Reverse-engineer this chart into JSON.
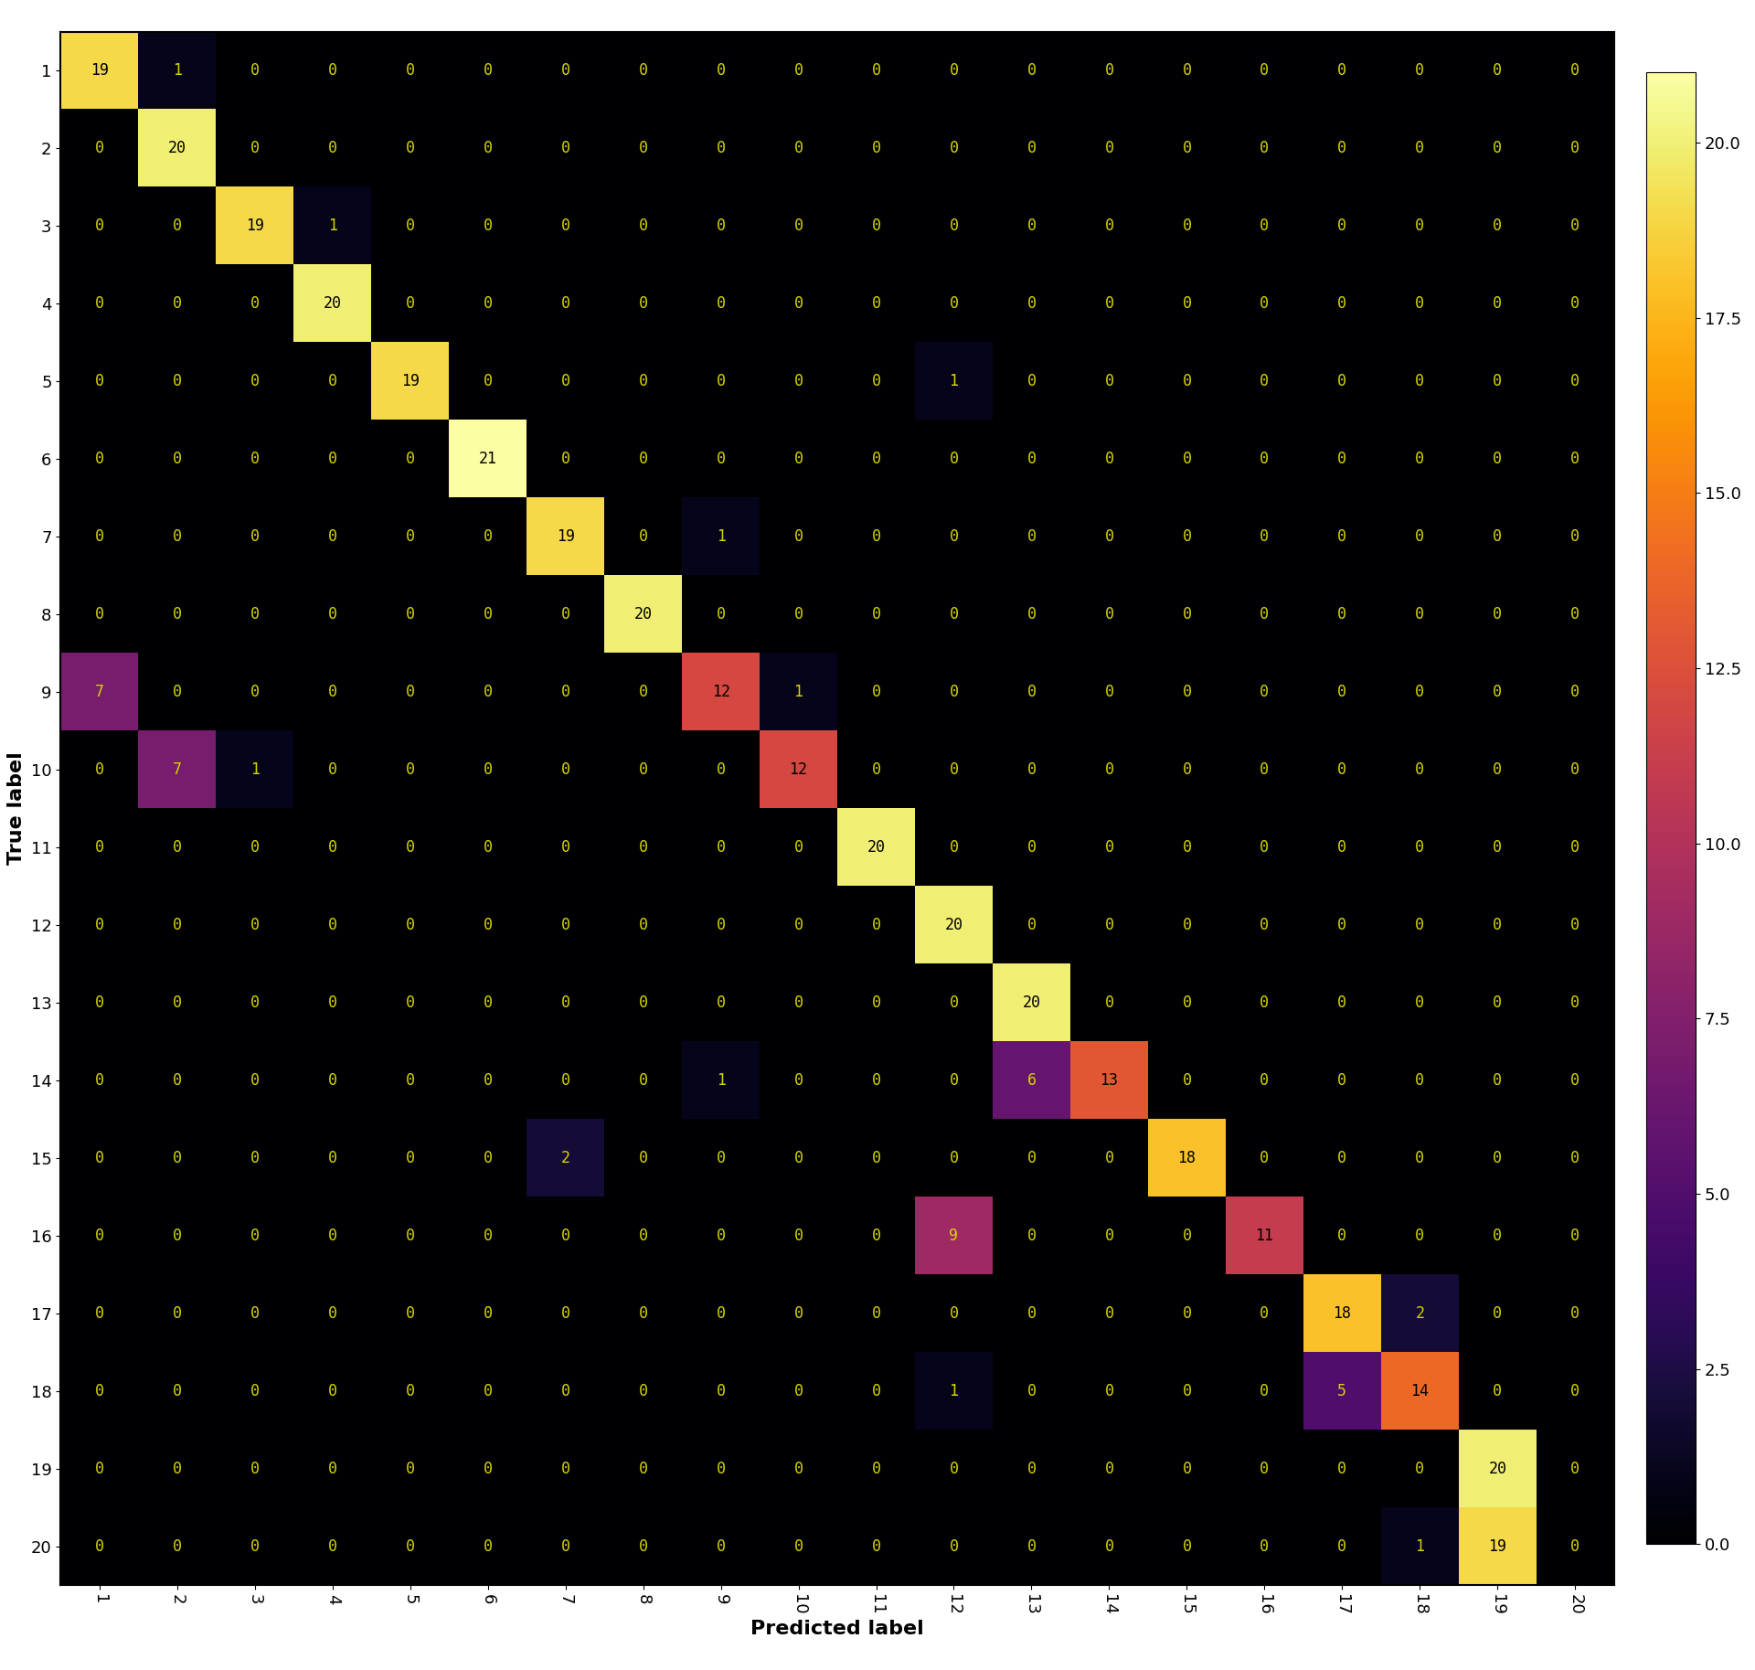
{
  "matrix": [
    [
      19,
      1,
      0,
      0,
      0,
      0,
      0,
      0,
      0,
      0,
      0,
      0,
      0,
      0,
      0,
      0,
      0,
      0,
      0,
      0
    ],
    [
      0,
      20,
      0,
      0,
      0,
      0,
      0,
      0,
      0,
      0,
      0,
      0,
      0,
      0,
      0,
      0,
      0,
      0,
      0,
      0
    ],
    [
      0,
      0,
      19,
      1,
      0,
      0,
      0,
      0,
      0,
      0,
      0,
      0,
      0,
      0,
      0,
      0,
      0,
      0,
      0,
      0
    ],
    [
      0,
      0,
      0,
      20,
      0,
      0,
      0,
      0,
      0,
      0,
      0,
      0,
      0,
      0,
      0,
      0,
      0,
      0,
      0,
      0
    ],
    [
      0,
      0,
      0,
      0,
      19,
      0,
      0,
      0,
      0,
      0,
      0,
      1,
      0,
      0,
      0,
      0,
      0,
      0,
      0,
      0
    ],
    [
      0,
      0,
      0,
      0,
      0,
      21,
      0,
      0,
      0,
      0,
      0,
      0,
      0,
      0,
      0,
      0,
      0,
      0,
      0,
      0
    ],
    [
      0,
      0,
      0,
      0,
      0,
      0,
      19,
      0,
      1,
      0,
      0,
      0,
      0,
      0,
      0,
      0,
      0,
      0,
      0,
      0
    ],
    [
      0,
      0,
      0,
      0,
      0,
      0,
      0,
      20,
      0,
      0,
      0,
      0,
      0,
      0,
      0,
      0,
      0,
      0,
      0,
      0
    ],
    [
      7,
      0,
      0,
      0,
      0,
      0,
      0,
      0,
      12,
      1,
      0,
      0,
      0,
      0,
      0,
      0,
      0,
      0,
      0,
      0
    ],
    [
      0,
      7,
      1,
      0,
      0,
      0,
      0,
      0,
      0,
      12,
      0,
      0,
      0,
      0,
      0,
      0,
      0,
      0,
      0,
      0
    ],
    [
      0,
      0,
      0,
      0,
      0,
      0,
      0,
      0,
      0,
      0,
      20,
      0,
      0,
      0,
      0,
      0,
      0,
      0,
      0,
      0
    ],
    [
      0,
      0,
      0,
      0,
      0,
      0,
      0,
      0,
      0,
      0,
      0,
      20,
      0,
      0,
      0,
      0,
      0,
      0,
      0,
      0
    ],
    [
      0,
      0,
      0,
      0,
      0,
      0,
      0,
      0,
      0,
      0,
      0,
      0,
      20,
      0,
      0,
      0,
      0,
      0,
      0,
      0
    ],
    [
      0,
      0,
      0,
      0,
      0,
      0,
      0,
      0,
      1,
      0,
      0,
      0,
      6,
      13,
      0,
      0,
      0,
      0,
      0,
      0
    ],
    [
      0,
      0,
      0,
      0,
      0,
      0,
      2,
      0,
      0,
      0,
      0,
      0,
      0,
      0,
      18,
      0,
      0,
      0,
      0,
      0
    ],
    [
      0,
      0,
      0,
      0,
      0,
      0,
      0,
      0,
      0,
      0,
      0,
      9,
      0,
      0,
      0,
      11,
      0,
      0,
      0,
      0
    ],
    [
      0,
      0,
      0,
      0,
      0,
      0,
      0,
      0,
      0,
      0,
      0,
      0,
      0,
      0,
      0,
      0,
      18,
      2,
      0,
      0
    ],
    [
      0,
      0,
      0,
      0,
      0,
      0,
      0,
      0,
      0,
      0,
      0,
      1,
      0,
      0,
      0,
      0,
      5,
      14,
      0,
      0
    ],
    [
      0,
      0,
      0,
      0,
      0,
      0,
      0,
      0,
      0,
      0,
      0,
      0,
      0,
      0,
      0,
      0,
      0,
      0,
      20,
      0
    ],
    [
      0,
      0,
      0,
      0,
      0,
      0,
      0,
      0,
      0,
      0,
      0,
      0,
      0,
      0,
      0,
      0,
      0,
      1,
      19,
      0
    ]
  ],
  "tick_labels": [
    "1",
    "2",
    "3",
    "4",
    "5",
    "6",
    "7",
    "8",
    "9",
    "10",
    "11",
    "12",
    "13",
    "14",
    "15",
    "16",
    "17",
    "18",
    "19",
    "20"
  ],
  "xlabel": "Predicted label",
  "ylabel": "True label",
  "cmap": "inferno",
  "vmin": 0,
  "vmax": 21,
  "figsize": [
    19.2,
    18.27
  ],
  "dpi": 100,
  "label_fontsize": 16,
  "tick_fontsize": 13,
  "annot_fontsize": 12,
  "colorbar_ticks": [
    0.0,
    2.5,
    5.0,
    7.5,
    10.0,
    12.5,
    15.0,
    17.5,
    20.0
  ],
  "colorbar_fontsize": 13,
  "text_thresh": 8
}
